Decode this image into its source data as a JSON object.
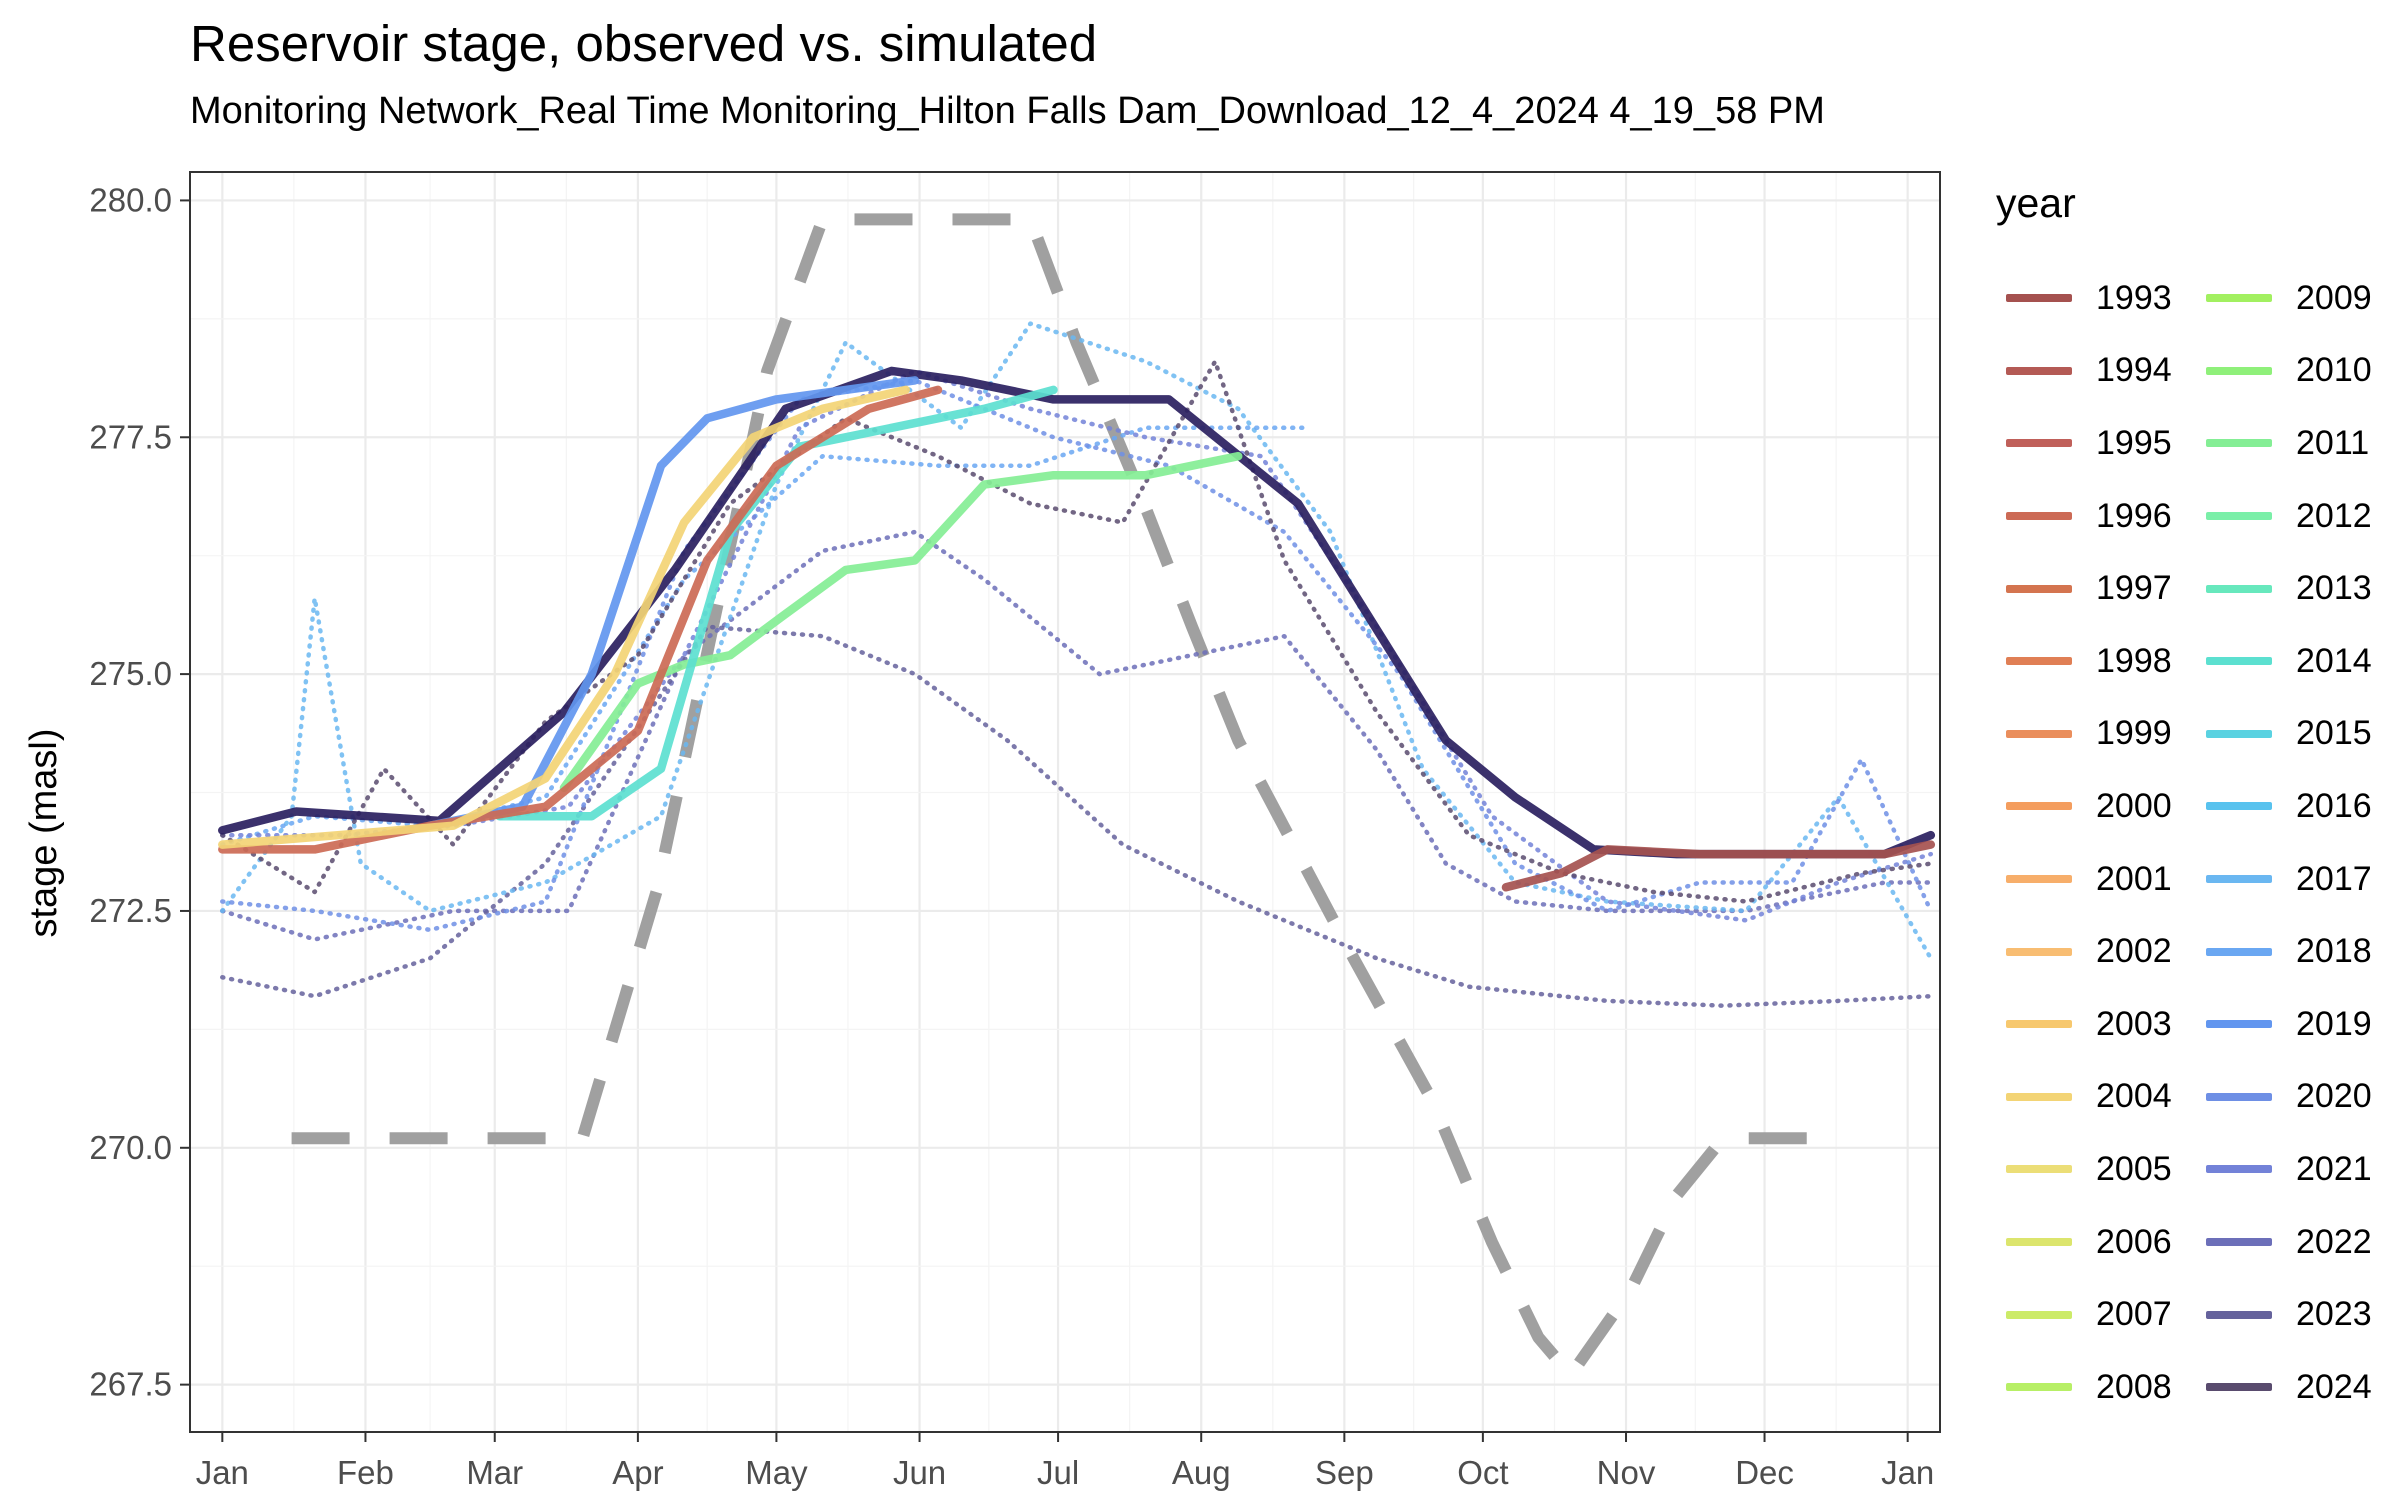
{
  "chart_data": {
    "type": "line",
    "title": "Reservoir stage, observed vs. simulated",
    "subtitle": "Monitoring Network_Real Time Monitoring_Hilton Falls Dam_Download_12_4_2024 4_19_58 PM",
    "xlabel": "",
    "ylabel": "stage (masl)",
    "x_ticks": [
      "Jan",
      "Feb",
      "Mar",
      "Apr",
      "May",
      "Jun",
      "Jul",
      "Aug",
      "Sep",
      "Oct",
      "Nov",
      "Dec",
      "Jan"
    ],
    "y_ticks": [
      "267.5",
      "270.0",
      "272.5",
      "275.0",
      "277.5",
      "280.0"
    ],
    "xlim_day": [
      -7,
      372
    ],
    "ylim": [
      267.0,
      280.3
    ],
    "grid": true,
    "legend_title": "year",
    "legend_position": "right",
    "years": [
      "1993",
      "1994",
      "1995",
      "1996",
      "1997",
      "1998",
      "1999",
      "2000",
      "2001",
      "2002",
      "2003",
      "2004",
      "2005",
      "2006",
      "2007",
      "2008",
      "2009",
      "2010",
      "2011",
      "2012",
      "2013",
      "2014",
      "2015",
      "2016",
      "2017",
      "2018",
      "2019",
      "2020",
      "2021",
      "2022",
      "2023",
      "2024"
    ],
    "year_colors": [
      "#a5514f",
      "#b45a55",
      "#c0605a",
      "#cc6a55",
      "#d4744f",
      "#e07f55",
      "#ea8e5c",
      "#f49d5e",
      "#f7ae6a",
      "#f8bd72",
      "#f7c86e",
      "#f3d475",
      "#ecde77",
      "#dce56d",
      "#cceb68",
      "#b7ef66",
      "#a2f060",
      "#8ff07a",
      "#84ee95",
      "#7aefa8",
      "#67e8bd",
      "#5ce0d0",
      "#5ad2e1",
      "#58c2ee",
      "#6ab7f1",
      "#6aa7f2",
      "#6296ef",
      "#6e8fe5",
      "#7382d8",
      "#6c6fb9",
      "#65629c",
      "#594b6e"
    ],
    "observed_series": [
      {
        "name": "2024",
        "style": "solid",
        "color": "#2a2060",
        "x_day": [
          0,
          16,
          47,
          74,
          98,
          122,
          145,
          160,
          180,
          205,
          233,
          265,
          280,
          297,
          315,
          335,
          360,
          370
        ],
        "y": [
          273.35,
          273.55,
          273.45,
          274.6,
          276.1,
          277.8,
          278.2,
          278.1,
          277.9,
          277.9,
          276.8,
          274.3,
          273.7,
          273.15,
          273.1,
          273.1,
          273.1,
          273.3
        ]
      },
      {
        "name": "2011",
        "style": "solid",
        "color": "#84ee95",
        "x_day": [
          74,
          90,
          100,
          110,
          121,
          135,
          150,
          165,
          180,
          200,
          220
        ],
        "y": [
          273.8,
          274.9,
          275.1,
          275.2,
          275.6,
          276.1,
          276.2,
          277.0,
          277.1,
          277.1,
          277.3
        ]
      },
      {
        "name": "2014",
        "style": "solid",
        "color": "#5ce0d0",
        "x_day": [
          60,
          80,
          95,
          110,
          125,
          145,
          165,
          180
        ],
        "y": [
          273.5,
          273.5,
          274.0,
          276.5,
          277.4,
          277.6,
          277.8,
          278.0
        ]
      },
      {
        "name": "2019",
        "style": "solid",
        "color": "#6296ef",
        "x_day": [
          45,
          65,
          80,
          95,
          105,
          120,
          135,
          150
        ],
        "y": [
          273.4,
          273.6,
          275.0,
          277.2,
          277.7,
          277.9,
          278.0,
          278.1
        ]
      },
      {
        "name": "1996",
        "style": "solid",
        "color": "#cc6a55",
        "x_day": [
          0,
          20,
          45,
          70,
          90,
          105,
          120,
          140,
          155
        ],
        "y": [
          273.15,
          273.15,
          273.4,
          273.6,
          274.4,
          276.2,
          277.2,
          277.8,
          278.0
        ]
      },
      {
        "name": "2004",
        "style": "solid",
        "color": "#f3d475",
        "x_day": [
          0,
          25,
          50,
          70,
          85,
          100,
          115,
          130,
          148
        ],
        "y": [
          273.2,
          273.3,
          273.4,
          273.9,
          275.0,
          276.6,
          277.5,
          277.8,
          278.0
        ]
      },
      {
        "name": "1993",
        "style": "solid",
        "color": "#a5514f",
        "x_day": [
          278,
          290,
          300,
          320,
          345,
          360,
          370
        ],
        "y": [
          272.75,
          272.9,
          273.15,
          273.1,
          273.1,
          273.1,
          273.2
        ]
      },
      {
        "name": "2022",
        "style": "dotted",
        "color": "#6c6fb9",
        "x_day": [
          0,
          20,
          50,
          75,
          100,
          130,
          150,
          165,
          190,
          210,
          230,
          250,
          265,
          280,
          300,
          330,
          360,
          370
        ],
        "y": [
          272.5,
          272.2,
          272.5,
          272.5,
          275.2,
          276.3,
          276.5,
          276.0,
          275.0,
          275.2,
          275.4,
          274.2,
          273.0,
          272.6,
          272.5,
          272.5,
          272.8,
          272.8
        ]
      },
      {
        "name": "2023",
        "style": "dotted",
        "color": "#65629c",
        "x_day": [
          0,
          20,
          45,
          70,
          105,
          130,
          150,
          170,
          195,
          220,
          250,
          270,
          300,
          325,
          350,
          370
        ],
        "y": [
          271.8,
          271.6,
          272.0,
          273.0,
          275.5,
          275.4,
          275.0,
          274.3,
          273.2,
          272.6,
          272.0,
          271.7,
          271.55,
          271.5,
          271.55,
          271.6
        ]
      },
      {
        "name": "2017",
        "style": "dotted",
        "color": "#6ab7f1",
        "x_day": [
          0,
          15,
          20,
          30,
          45,
          70,
          95,
          120,
          135,
          160,
          175,
          200,
          220,
          240,
          260,
          280,
          300,
          330,
          350,
          370
        ],
        "y": [
          272.5,
          273.5,
          275.8,
          273.0,
          272.5,
          272.8,
          273.5,
          277.0,
          278.5,
          277.6,
          278.7,
          278.3,
          277.8,
          276.5,
          274.0,
          272.8,
          272.6,
          272.5,
          273.7,
          272.0
        ]
      },
      {
        "name": "2018",
        "style": "dotted",
        "color": "#6aa7f2",
        "x_day": [
          0,
          20,
          45,
          70,
          100,
          130,
          155,
          175,
          200,
          220,
          235
        ],
        "y": [
          273.2,
          273.5,
          273.4,
          273.7,
          276.0,
          277.3,
          277.2,
          277.2,
          277.6,
          277.6,
          277.6
        ]
      },
      {
        "name": "2021",
        "style": "dotted",
        "color": "#7382d8",
        "x_day": [
          0,
          25,
          50,
          75,
          100,
          125,
          150,
          175,
          200,
          225,
          250,
          275,
          300,
          330,
          350,
          370
        ],
        "y": [
          273.3,
          273.3,
          273.4,
          273.6,
          275.2,
          277.6,
          278.2,
          277.8,
          277.5,
          277.3,
          275.5,
          273.5,
          272.6,
          272.4,
          272.8,
          273.1
        ]
      },
      {
        "name": "2020",
        "style": "dotted",
        "color": "#6e8fe5",
        "x_day": [
          0,
          20,
          45,
          70,
          100,
          125,
          150,
          180,
          205,
          230,
          255,
          280,
          300,
          320,
          340,
          355,
          370
        ],
        "y": [
          272.6,
          272.5,
          272.3,
          272.6,
          276.3,
          277.9,
          278.1,
          277.5,
          277.2,
          276.5,
          275.0,
          273.0,
          272.5,
          272.8,
          272.8,
          274.1,
          272.5
        ]
      },
      {
        "name": "2024",
        "style": "dotted",
        "color": "#594b6e",
        "x_day": [
          0,
          20,
          35,
          50,
          70,
          90,
          110,
          135,
          155,
          175,
          195,
          215,
          230,
          250,
          270,
          290,
          310,
          330,
          355,
          370
        ],
        "y": [
          273.3,
          272.7,
          274.0,
          273.2,
          274.5,
          275.2,
          276.8,
          277.7,
          277.3,
          276.8,
          276.6,
          278.3,
          276.2,
          274.6,
          273.3,
          272.9,
          272.7,
          272.6,
          272.9,
          273.0
        ]
      }
    ],
    "simulated_series": {
      "name": "simulated",
      "style": "dashed",
      "color": "#a0a0a0",
      "x_day": [
        15,
        75,
        78,
        94,
        118,
        130,
        140,
        165,
        175,
        185,
        198,
        210,
        220,
        245,
        262,
        275,
        285,
        292,
        305,
        315,
        325,
        345
      ],
      "y": [
        270.1,
        270.1,
        270.1,
        272.7,
        278.2,
        279.8,
        279.8,
        279.8,
        279.8,
        278.5,
        277.0,
        275.5,
        274.3,
        272.0,
        270.5,
        269.0,
        268.0,
        267.6,
        268.5,
        269.5,
        270.1,
        270.1
      ]
    }
  }
}
